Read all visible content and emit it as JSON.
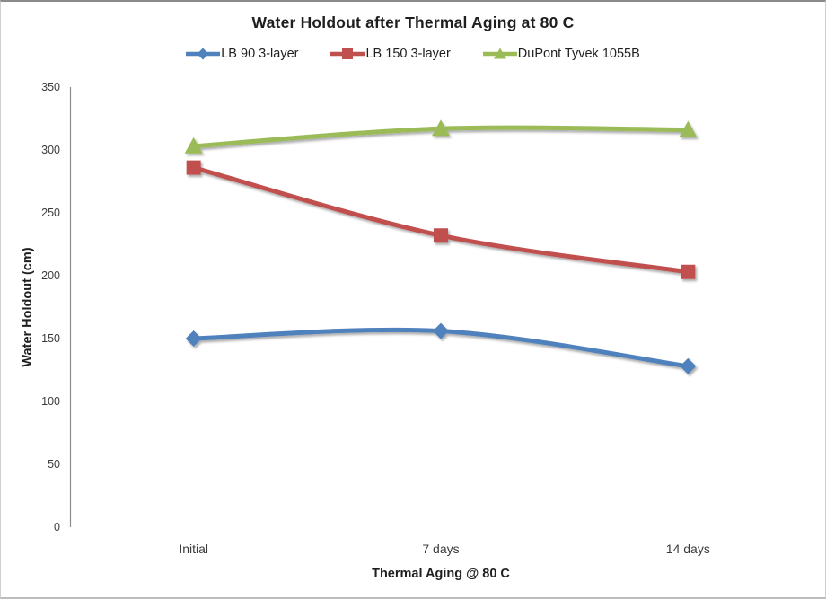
{
  "chart_data": {
    "type": "line",
    "title": "Water Holdout after Thermal Aging at 80 C",
    "xlabel": "Thermal Aging @  80 C",
    "ylabel": "Water Holdout (cm)",
    "categories": [
      "Initial",
      "7 days",
      "14 days"
    ],
    "series": [
      {
        "name": "LB 90 3-layer",
        "values": [
          150,
          156,
          128
        ],
        "color": "#4F81BD",
        "marker": "diamond"
      },
      {
        "name": "LB 150 3-layer",
        "values": [
          286,
          232,
          203
        ],
        "color": "#C0504D",
        "marker": "square"
      },
      {
        "name": "DuPont Tyvek 1055B",
        "values": [
          303,
          317,
          316
        ],
        "color": "#9BBB59",
        "marker": "triangle"
      }
    ],
    "ylim": [
      0,
      350
    ],
    "yticks": [
      0,
      50,
      100,
      150,
      200,
      250,
      300,
      350
    ],
    "grid": true,
    "smoothed_lines": true,
    "legend_position": "top",
    "colors": {
      "gridline": "#9b9b9b",
      "axis_line": "#8c8c8c",
      "text": "#1f1f1f"
    }
  }
}
